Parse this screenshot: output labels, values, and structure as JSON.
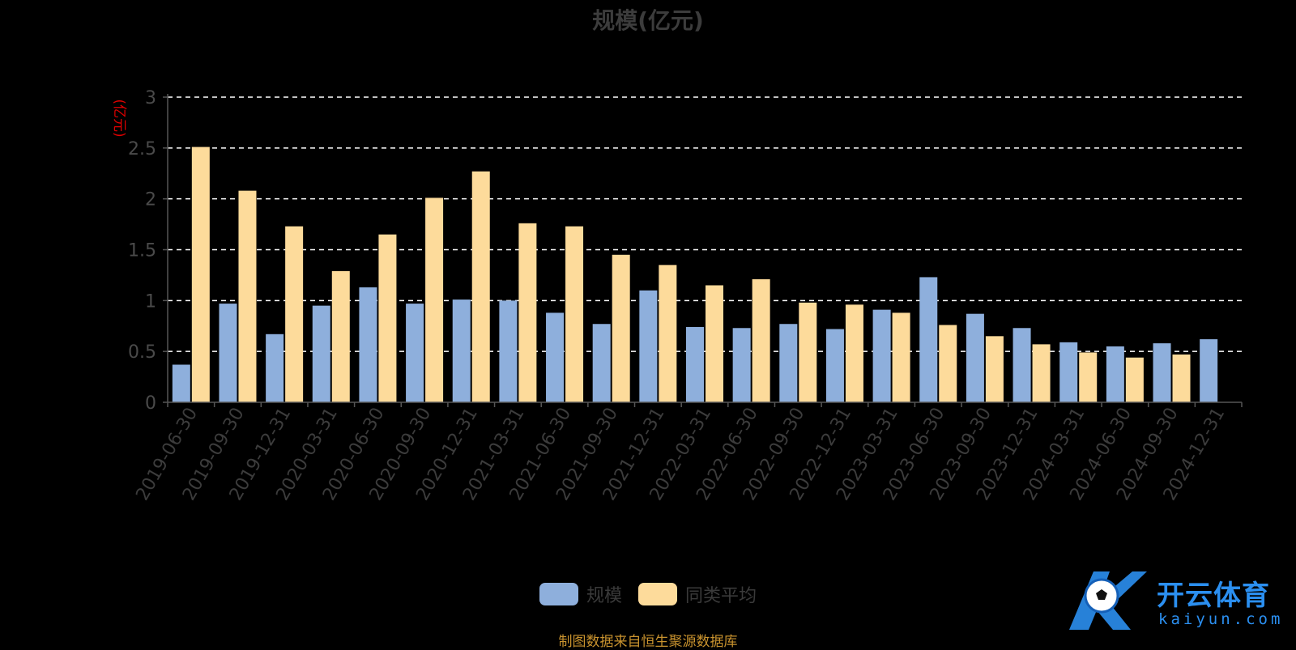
{
  "title": "规模(亿元)",
  "source_note": "制图数据来自恒生聚源数据库",
  "logo": {
    "text": "开云体育",
    "sub": "kaiyun.com"
  },
  "colors": {
    "background": "#000000",
    "series1": "#8eafdc",
    "series2": "#fddb9b",
    "grid": "#ffffff",
    "axis_unit": "#e00000",
    "source": "#c8922e",
    "logo": "#2b8ff0"
  },
  "chart_data": {
    "type": "bar",
    "title": "规模(亿元)",
    "ylabel": "(亿元)",
    "xlabel": "",
    "ylim": [
      0,
      3
    ],
    "yticks": [
      "0",
      "0.5",
      "1",
      "1.5",
      "2",
      "2.5",
      "3"
    ],
    "grid": "dashed horizontal",
    "legend_position": "bottom-center",
    "categories": [
      "2019-06-30",
      "2019-09-30",
      "2019-12-31",
      "2020-03-31",
      "2020-06-30",
      "2020-09-30",
      "2020-12-31",
      "2021-03-31",
      "2021-06-30",
      "2021-09-30",
      "2021-12-31",
      "2022-03-31",
      "2022-06-30",
      "2022-09-30",
      "2022-12-31",
      "2023-03-31",
      "2023-06-30",
      "2023-09-30",
      "2023-12-31",
      "2024-03-31",
      "2024-06-30",
      "2024-09-30",
      "2024-12-31"
    ],
    "series": [
      {
        "name": "规模",
        "values": [
          0.37,
          0.97,
          0.67,
          0.95,
          1.13,
          0.97,
          1.01,
          1.0,
          0.88,
          0.77,
          1.1,
          0.74,
          0.73,
          0.77,
          0.72,
          0.91,
          1.23,
          0.87,
          0.73,
          0.59,
          0.55,
          0.58,
          0.62
        ]
      },
      {
        "name": "同类平均",
        "values": [
          2.51,
          2.08,
          1.73,
          1.29,
          1.65,
          2.01,
          2.27,
          1.76,
          1.73,
          1.45,
          1.35,
          1.15,
          1.21,
          0.98,
          0.96,
          0.88,
          0.76,
          0.65,
          0.57,
          0.49,
          0.44,
          0.47,
          null
        ]
      }
    ]
  }
}
